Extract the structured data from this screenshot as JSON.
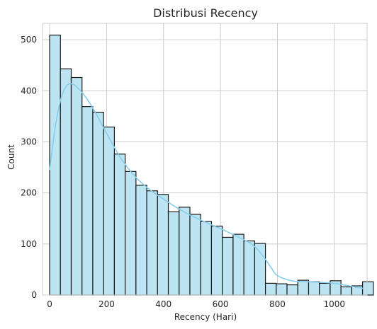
{
  "chart_data": {
    "type": "bar",
    "subtype": "histogram",
    "title": "Distribusi Recency",
    "xlabel": "Recency (Hari)",
    "ylabel": "Count",
    "xlim": [
      -25,
      1115
    ],
    "ylim": [
      0,
      532
    ],
    "x_ticks": [
      0,
      200,
      400,
      600,
      800,
      1000
    ],
    "y_ticks": [
      0,
      100,
      200,
      300,
      400,
      500
    ],
    "grid": true,
    "bin_width": 37.9,
    "bin_start": 0,
    "values": [
      509,
      443,
      426,
      369,
      358,
      329,
      276,
      242,
      215,
      204,
      197,
      163,
      172,
      158,
      144,
      135,
      113,
      119,
      106,
      101,
      23,
      22,
      20,
      29,
      26,
      23,
      28,
      16,
      18,
      26
    ],
    "kde": {
      "x": [
        0,
        20,
        40,
        60,
        80,
        100,
        130,
        160,
        200,
        250,
        300,
        350,
        400,
        450,
        500,
        550,
        600,
        650,
        700,
        720,
        740,
        760,
        780,
        800,
        850,
        900,
        950,
        1000,
        1050,
        1100
      ],
      "y": [
        245,
        330,
        385,
        410,
        413,
        405,
        385,
        358,
        317,
        268,
        232,
        207,
        188,
        170,
        155,
        142,
        130,
        117,
        103,
        95,
        83,
        68,
        52,
        38,
        28,
        26,
        25,
        23,
        18,
        13
      ]
    },
    "colors": {
      "bar_fill": "#bde4f2",
      "bar_edge": "#1a1a1a",
      "kde_line": "#87ceeb",
      "grid": "#cccccc",
      "spine": "#cccccc"
    }
  }
}
